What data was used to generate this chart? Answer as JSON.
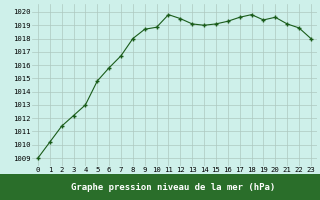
{
  "x": [
    0,
    1,
    2,
    3,
    4,
    5,
    6,
    7,
    8,
    9,
    10,
    11,
    12,
    13,
    14,
    15,
    16,
    17,
    18,
    19,
    20,
    21,
    22,
    23
  ],
  "y": [
    1009.0,
    1010.2,
    1011.4,
    1012.2,
    1013.0,
    1014.8,
    1015.8,
    1016.7,
    1018.0,
    1018.7,
    1018.85,
    1019.8,
    1019.5,
    1019.1,
    1019.0,
    1019.1,
    1019.3,
    1019.6,
    1019.8,
    1019.4,
    1019.6,
    1019.1,
    1018.8,
    1018.0
  ],
  "line_color": "#1a5c1a",
  "marker": "+",
  "bg_color": "#cef0ea",
  "grid_color": "#adc8c0",
  "xlabel": "Graphe pression niveau de la mer (hPa)",
  "xlabel_fontsize": 6.5,
  "ylabel_ticks": [
    1009,
    1010,
    1011,
    1012,
    1013,
    1014,
    1015,
    1016,
    1017,
    1018,
    1019,
    1020
  ],
  "ylim": [
    1008.4,
    1020.6
  ],
  "xlim": [
    -0.5,
    23.5
  ],
  "tick_fontsize": 5.2,
  "bottom_bar_color": "#2a6e2a",
  "bottom_bar_height": 0.13
}
